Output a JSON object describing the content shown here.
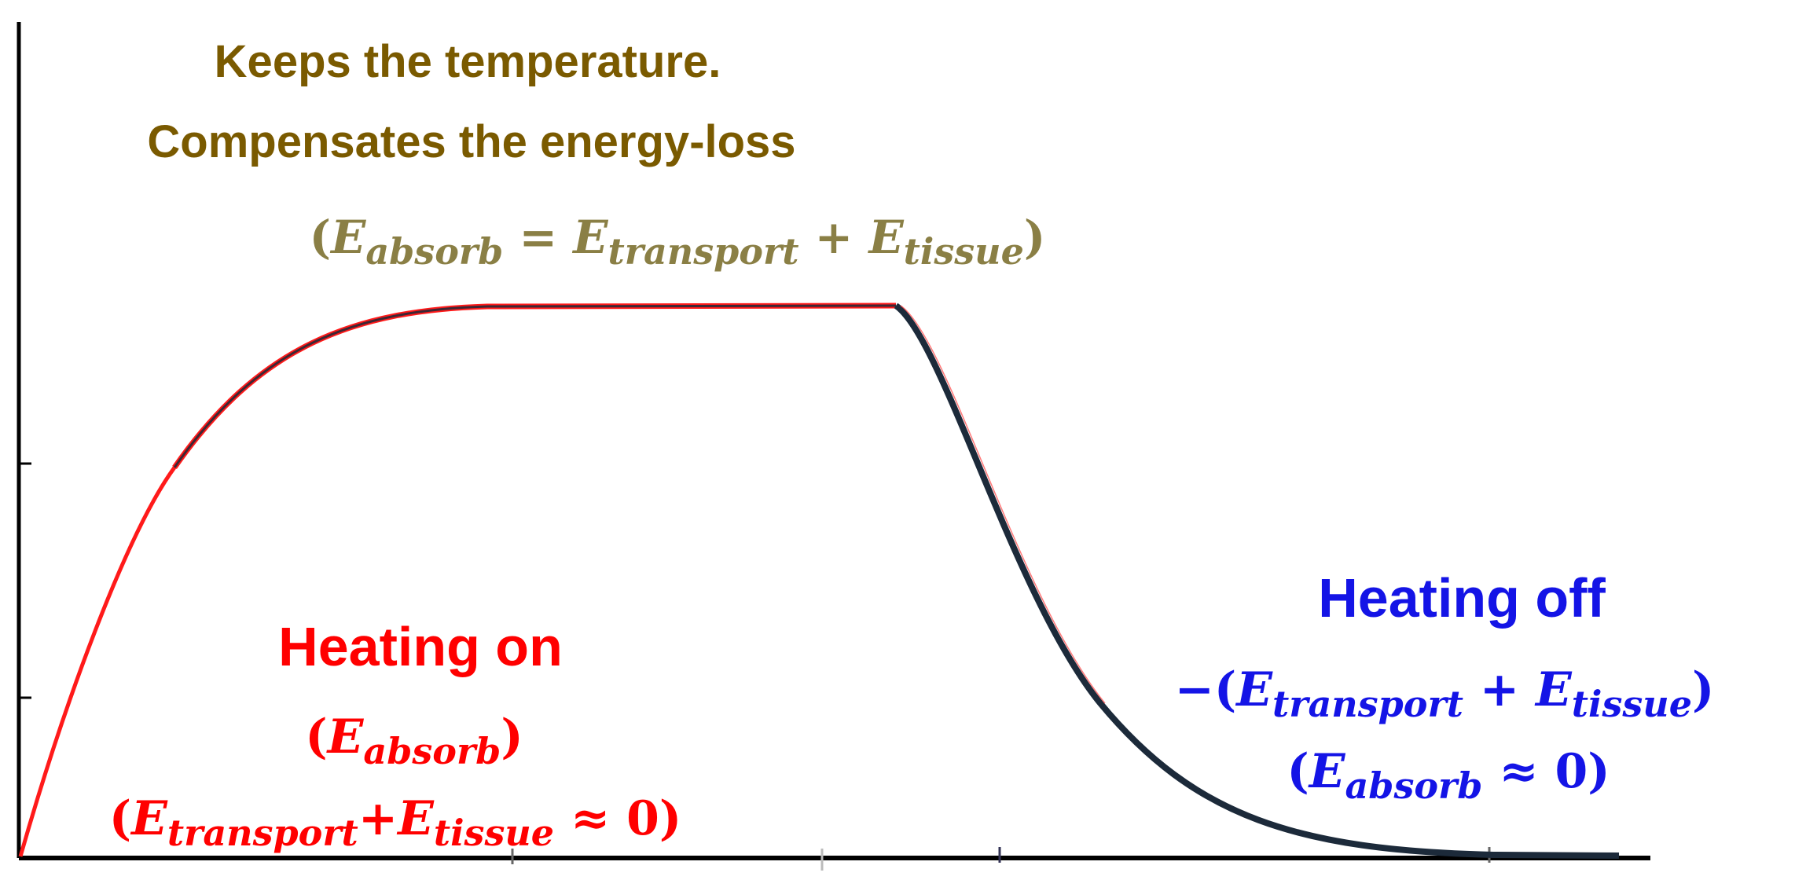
{
  "colors": {
    "plateau_text": "#7a5a00",
    "plateau_eq": "#8a7f45",
    "heating_on": "#ff0000",
    "heating_off": "#1414e6",
    "curve_rise": "#ff1a1a",
    "curve_dark": "#1c2a3a",
    "axis": "#000000"
  },
  "plateau": {
    "line1": "Keeps the temperature.",
    "line2": "Compensates the energy-loss",
    "equation": {
      "open": "(",
      "e1": "E",
      "s1": "absorb",
      "eq": " = ",
      "e2": "E",
      "s2": "transport",
      "plus": " + ",
      "e3": "E",
      "s3": "tissue",
      "close": ")"
    }
  },
  "heating_on": {
    "title": "Heating on",
    "eq1": {
      "open": "(",
      "e": "E",
      "sub": "absorb",
      "close": ")"
    },
    "eq2": {
      "open": "(",
      "e1": "E",
      "s1": "transport",
      "plus": "+",
      "e2": "E",
      "s2": "tissue",
      "approx": " ≈ ",
      "zero": "0",
      "close": ")"
    }
  },
  "heating_off": {
    "title": "Heating off",
    "eq1": {
      "neg": "−(",
      "e1": "E",
      "s1": "transport",
      "plus": " + ",
      "e2": "E",
      "s2": "tissue",
      "close": ")"
    },
    "eq2": {
      "open": "(",
      "e": "E",
      "sub": "absorb",
      "approx": " ≈ ",
      "zero": "0",
      "close": ")"
    }
  }
}
